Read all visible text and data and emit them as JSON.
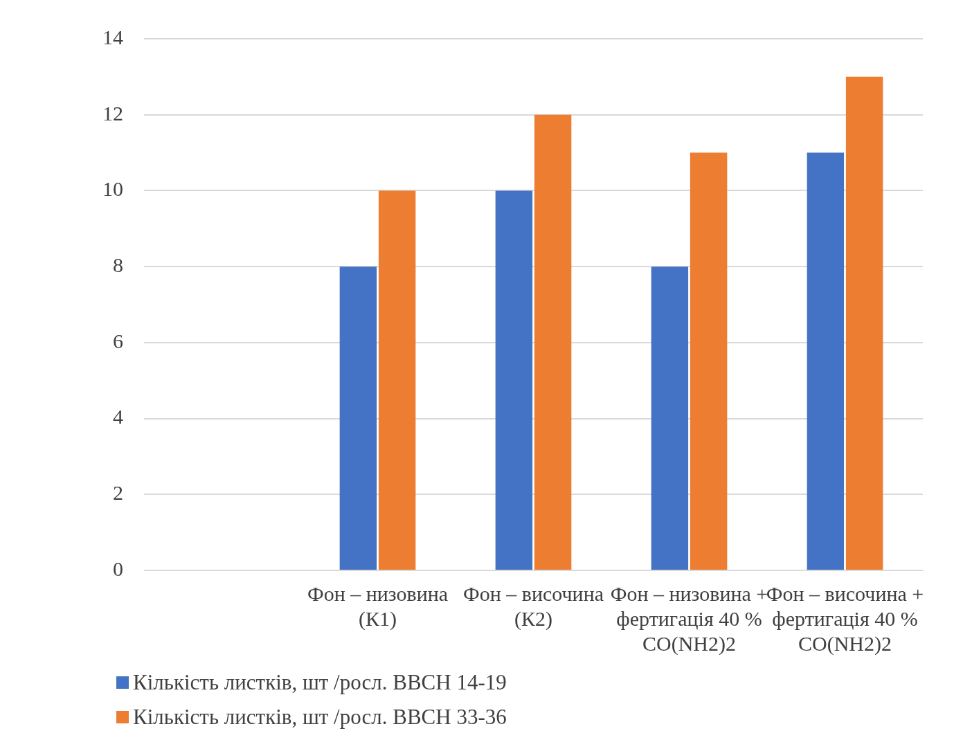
{
  "chart_data": {
    "type": "bar",
    "categories": [
      null,
      "Фон – низовина (К1)",
      "Фон – височина (К2)",
      "Фон – низовина + фертигація 40 % CO(NH2)2",
      "Фон – височина + фертигація 40 % CO(NH2)2"
    ],
    "series": [
      {
        "name": "Кількість листків, шт /росл. ВВСН 14-19",
        "color": "#4472c4",
        "values": [
          null,
          8,
          10,
          8,
          11
        ]
      },
      {
        "name": "Кількість листків, шт /росл. ВВСН 33-36",
        "color": "#ed7d31",
        "values": [
          null,
          10,
          12,
          11,
          13
        ]
      }
    ],
    "ylim": [
      0,
      14
    ],
    "yticks": [
      0,
      2,
      4,
      6,
      8,
      10,
      12,
      14
    ],
    "grid": "y",
    "legend": "bottom left"
  }
}
